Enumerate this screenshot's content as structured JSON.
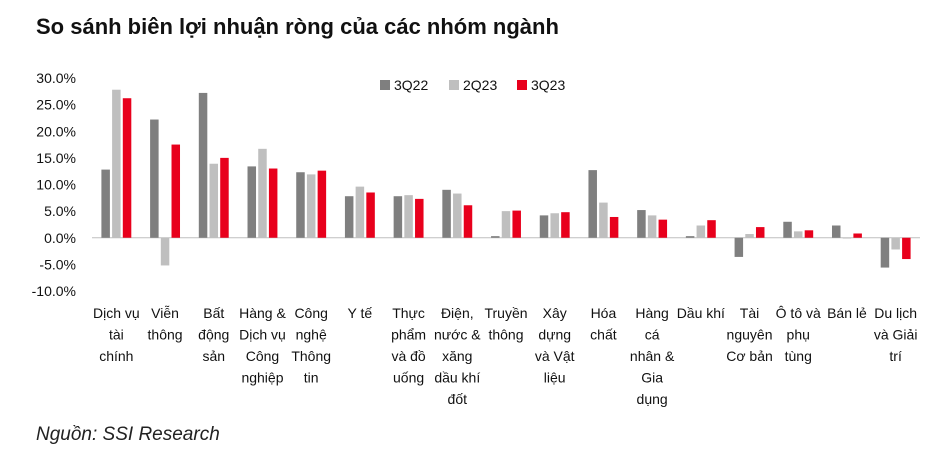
{
  "title": "So sánh biên lợi nhuận ròng của các nhóm ngành",
  "source": "Nguồn: SSI Research",
  "chart_data": {
    "type": "bar",
    "ylim": [
      -10,
      30
    ],
    "yticks": [
      30,
      25,
      20,
      15,
      10,
      5,
      0,
      -5,
      -10
    ],
    "ytick_labels": [
      "30.0%",
      "25.0%",
      "20.0%",
      "15.0%",
      "10.0%",
      "5.0%",
      "0.0%",
      "-5.0%",
      "-10.0%"
    ],
    "grid": false,
    "legend_position": "top",
    "categories": [
      [
        "Dịch vụ",
        "tài",
        "chính"
      ],
      [
        "Viễn",
        "thông"
      ],
      [
        "Bất",
        "động",
        "sản"
      ],
      [
        "Hàng &",
        "Dịch vụ",
        "Công",
        "nghiệp"
      ],
      [
        "Công",
        "nghệ",
        "Thông",
        "tin"
      ],
      [
        "Y tế"
      ],
      [
        "Thực",
        "phẩm",
        "và đồ",
        "uống"
      ],
      [
        "Điện,",
        "nước &",
        "xăng",
        "dầu khí",
        "đốt"
      ],
      [
        "Truyền",
        "thông"
      ],
      [
        "Xây",
        "dựng",
        "và Vật",
        "liệu"
      ],
      [
        "Hóa",
        "chất"
      ],
      [
        "Hàng",
        "cá",
        "nhân &",
        "Gia",
        "dụng"
      ],
      [
        "Dầu khí"
      ],
      [
        "Tài",
        "nguyên",
        "Cơ bản"
      ],
      [
        "Ô tô và",
        "phụ",
        "tùng"
      ],
      [
        "Bán lẻ"
      ],
      [
        "Du lịch",
        "và Giải",
        "trí"
      ]
    ],
    "series": [
      {
        "name": "3Q22",
        "color": "#7f7f7f",
        "values": [
          12.8,
          22.2,
          27.2,
          13.4,
          12.3,
          7.8,
          7.8,
          9.0,
          0.3,
          4.2,
          12.7,
          5.2,
          0.3,
          -3.6,
          3.0,
          2.3,
          -5.6
        ]
      },
      {
        "name": "2Q23",
        "color": "#bfbfbf",
        "values": [
          27.8,
          -5.2,
          13.9,
          16.7,
          11.9,
          9.6,
          8.0,
          8.3,
          5.0,
          4.6,
          6.6,
          4.2,
          2.3,
          0.7,
          1.2,
          0.0,
          -2.2
        ]
      },
      {
        "name": "3Q23",
        "color": "#e8001c",
        "values": [
          26.2,
          17.5,
          15.0,
          13.0,
          12.6,
          8.5,
          7.3,
          6.1,
          5.1,
          4.8,
          3.9,
          3.4,
          3.3,
          2.0,
          1.4,
          0.8,
          -4.0
        ]
      }
    ]
  }
}
